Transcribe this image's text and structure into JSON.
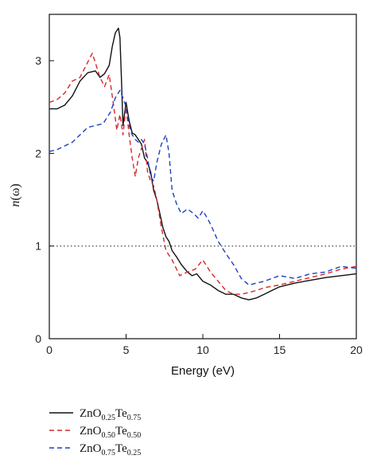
{
  "chart_data": {
    "type": "line",
    "title": "",
    "xlabel": "Energy (eV)",
    "ylabel_main": "n",
    "ylabel_arg": "(ω)",
    "xlim": [
      0,
      20
    ],
    "ylim": [
      0,
      3.5
    ],
    "xticks": [
      0,
      5,
      10,
      15,
      20
    ],
    "yticks": [
      0,
      1,
      2,
      3
    ],
    "xtick_labels": [
      "0",
      "5",
      "10",
      "15",
      "20"
    ],
    "ytick_labels": [
      "0",
      "1",
      "2",
      "3"
    ],
    "grid": false,
    "reference_line": {
      "y": 1,
      "style": "dotted",
      "color": "#444444"
    },
    "legend_position": "below-left",
    "series": [
      {
        "name": "ZnO0.25Te0.75",
        "legend": {
          "base1": "ZnO",
          "sub1": "0.25",
          "base2": "Te",
          "sub2": "0.75"
        },
        "color": "#111111",
        "dash": "solid",
        "x": [
          0,
          0.5,
          1,
          1.5,
          2,
          2.5,
          3,
          3.3,
          3.6,
          3.9,
          4.1,
          4.3,
          4.5,
          4.6,
          4.7,
          4.8,
          5.0,
          5.2,
          5.4,
          5.6,
          5.8,
          6.0,
          6.2,
          6.4,
          6.6,
          6.8,
          7.0,
          7.2,
          7.4,
          7.6,
          7.8,
          8.0,
          8.3,
          8.6,
          9.0,
          9.3,
          9.6,
          10.0,
          10.5,
          11.0,
          11.5,
          12.0,
          12.5,
          13.0,
          13.5,
          14.0,
          14.5,
          15.0,
          16.0,
          17.0,
          18.0,
          19.0,
          20.0
        ],
        "values": [
          2.48,
          2.48,
          2.52,
          2.62,
          2.78,
          2.87,
          2.89,
          2.82,
          2.86,
          2.95,
          3.15,
          3.3,
          3.35,
          3.25,
          2.8,
          2.3,
          2.55,
          2.35,
          2.22,
          2.2,
          2.15,
          2.1,
          1.95,
          1.9,
          1.8,
          1.6,
          1.5,
          1.35,
          1.2,
          1.1,
          1.05,
          0.95,
          0.88,
          0.8,
          0.72,
          0.68,
          0.7,
          0.62,
          0.58,
          0.52,
          0.48,
          0.48,
          0.44,
          0.42,
          0.44,
          0.48,
          0.52,
          0.56,
          0.6,
          0.63,
          0.66,
          0.68,
          0.7
        ]
      },
      {
        "name": "ZnO0.50Te0.50",
        "legend": {
          "base1": "ZnO",
          "sub1": "0.50",
          "base2": "Te",
          "sub2": "0.50"
        },
        "color": "#d62728",
        "dash": "6,4",
        "x": [
          0,
          0.5,
          1,
          1.5,
          2,
          2.4,
          2.8,
          3.0,
          3.3,
          3.6,
          3.9,
          4.2,
          4.4,
          4.6,
          4.8,
          5.0,
          5.2,
          5.4,
          5.6,
          5.8,
          6.0,
          6.2,
          6.4,
          6.6,
          6.8,
          7.0,
          7.3,
          7.6,
          8.0,
          8.5,
          9.0,
          9.5,
          10.0,
          10.5,
          11.0,
          11.5,
          12.0,
          12.5,
          13.0,
          13.5,
          14.0,
          15.0,
          16.0,
          17.0,
          18.0,
          19.0,
          20.0
        ],
        "values": [
          2.55,
          2.58,
          2.65,
          2.78,
          2.82,
          2.95,
          3.08,
          2.98,
          2.82,
          2.72,
          2.85,
          2.5,
          2.25,
          2.42,
          2.2,
          2.5,
          2.2,
          1.95,
          1.75,
          1.95,
          2.05,
          2.15,
          1.8,
          1.7,
          1.65,
          1.5,
          1.2,
          0.95,
          0.85,
          0.68,
          0.72,
          0.75,
          0.85,
          0.72,
          0.62,
          0.52,
          0.48,
          0.48,
          0.5,
          0.52,
          0.55,
          0.58,
          0.62,
          0.66,
          0.7,
          0.75,
          0.78
        ]
      },
      {
        "name": "ZnO0.75Te0.25",
        "legend": {
          "base1": "ZnO",
          "sub1": "0.75",
          "base2": "Te",
          "sub2": "0.25"
        },
        "color": "#1f3fbf",
        "dash": "6,4",
        "x": [
          0,
          0.5,
          1,
          1.5,
          2,
          2.5,
          3,
          3.5,
          4.0,
          4.3,
          4.6,
          4.8,
          5.0,
          5.2,
          5.4,
          5.6,
          5.8,
          6.0,
          6.2,
          6.4,
          6.6,
          6.8,
          7.0,
          7.3,
          7.6,
          7.8,
          8.0,
          8.3,
          8.6,
          9.0,
          9.4,
          9.7,
          10.0,
          10.3,
          10.6,
          11.0,
          11.5,
          12.0,
          12.5,
          13.0,
          13.5,
          14.0,
          15.0,
          16.0,
          17.0,
          18.0,
          19.0,
          20.0
        ],
        "values": [
          2.02,
          2.04,
          2.08,
          2.12,
          2.2,
          2.28,
          2.3,
          2.32,
          2.45,
          2.6,
          2.68,
          2.6,
          2.5,
          2.3,
          2.2,
          2.15,
          2.12,
          2.15,
          2.1,
          1.95,
          1.75,
          1.7,
          1.9,
          2.1,
          2.2,
          2.0,
          1.6,
          1.45,
          1.35,
          1.4,
          1.35,
          1.3,
          1.38,
          1.3,
          1.2,
          1.05,
          0.92,
          0.8,
          0.65,
          0.58,
          0.6,
          0.62,
          0.68,
          0.65,
          0.7,
          0.72,
          0.78,
          0.76
        ]
      }
    ]
  }
}
